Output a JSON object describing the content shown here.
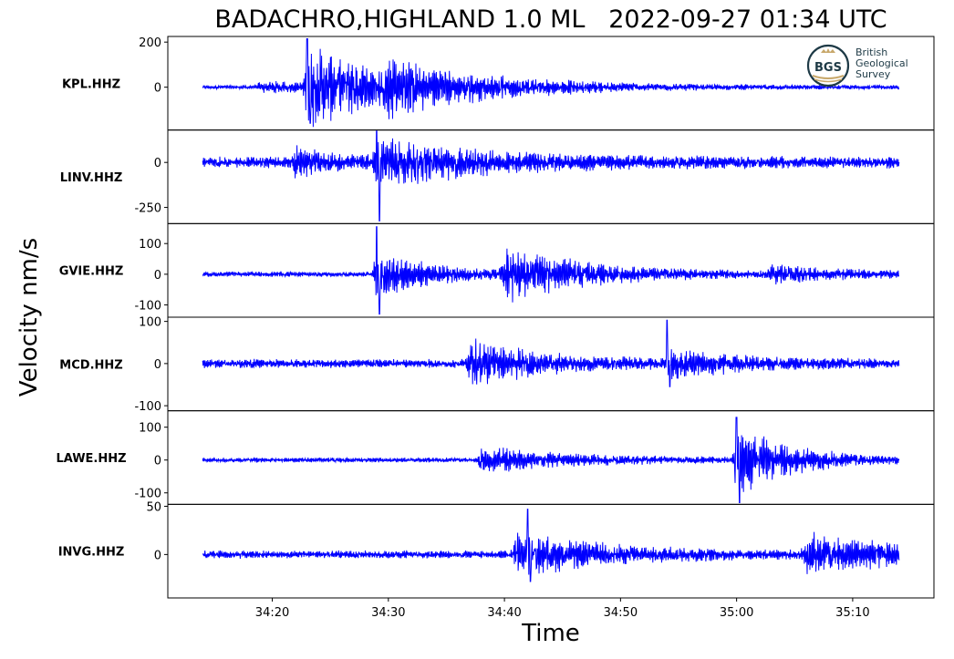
{
  "chart_data": {
    "type": "line",
    "title": "BADACHRO,HIGHLAND 1.0 ML   2022-09-27 01:34 UTC",
    "xlabel": "Time",
    "ylabel": "Velocity nm/s",
    "xlim": [
      "34:11",
      "35:17"
    ],
    "x_ticks": [
      "34:20",
      "34:30",
      "34:40",
      "34:50",
      "35:00",
      "35:10"
    ],
    "trace_start": "34:14",
    "trace_end": "35:14",
    "line_color": "#0000ff",
    "panels": [
      {
        "station": "KPL.HHZ",
        "ylim": [
          -190,
          225
        ],
        "yticks": [
          200,
          0
        ],
        "noise": 8,
        "bursts": [
          {
            "t": "34:19",
            "amp": 25,
            "dur": 6
          },
          {
            "t": "34:23",
            "amp": 160,
            "dur": 8
          },
          {
            "t": "34:30",
            "amp": 60,
            "dur": 10
          }
        ],
        "peak": {
          "t": "34:23",
          "max": 215,
          "min": -160
        }
      },
      {
        "station": "LINV.HHZ",
        "ylim": [
          -340,
          180
        ],
        "yticks": [
          0,
          -250
        ],
        "noise": 30,
        "bursts": [
          {
            "t": "34:22",
            "amp": 60,
            "dur": 4
          },
          {
            "t": "34:29",
            "amp": 120,
            "dur": 9
          }
        ],
        "peak": {
          "t": "34:29",
          "max": 175,
          "min": -325
        }
      },
      {
        "station": "GVIE.HHZ",
        "ylim": [
          -140,
          165
        ],
        "yticks": [
          100,
          0,
          -100
        ],
        "noise": 8,
        "bursts": [
          {
            "t": "34:29",
            "amp": 70,
            "dur": 5
          },
          {
            "t": "34:40",
            "amp": 85,
            "dur": 7
          },
          {
            "t": "35:03",
            "amp": 25,
            "dur": 6
          }
        ],
        "peak": {
          "t": "34:29",
          "max": 155,
          "min": -130
        }
      },
      {
        "station": "MCD.HHZ",
        "ylim": [
          -112,
          110
        ],
        "yticks": [
          100,
          0,
          -100
        ],
        "noise": 10,
        "bursts": [
          {
            "t": "34:37",
            "amp": 50,
            "dur": 6
          },
          {
            "t": "34:54",
            "amp": 30,
            "dur": 6
          }
        ],
        "peak": {
          "t": "34:54",
          "max": 103,
          "min": -55
        }
      },
      {
        "station": "LAWE.HHZ",
        "ylim": [
          -135,
          150
        ],
        "yticks": [
          100,
          0,
          -100
        ],
        "noise": 7,
        "bursts": [
          {
            "t": "34:38",
            "amp": 35,
            "dur": 8
          },
          {
            "t": "35:00",
            "amp": 95,
            "dur": 5
          }
        ],
        "peak": {
          "t": "35:00",
          "max": 130,
          "min": -130
        }
      },
      {
        "station": "INVG.HHZ",
        "ylim": [
          -45,
          52
        ],
        "yticks": [
          50,
          0
        ],
        "noise": 4,
        "bursts": [
          {
            "t": "34:41",
            "amp": 20,
            "dur": 8
          },
          {
            "t": "35:06",
            "amp": 18,
            "dur": 10
          }
        ],
        "peak": {
          "t": "34:42",
          "max": 47,
          "min": -28
        }
      }
    ],
    "grid": false,
    "legend": "none"
  },
  "logo": {
    "mark": "BGS",
    "lines": [
      "British",
      "Geological",
      "Survey"
    ],
    "color": "#1e3a46",
    "accent": "#c8a86b"
  }
}
